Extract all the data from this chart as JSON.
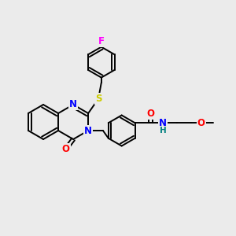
{
  "background_color": "#ebebeb",
  "bond_color": "#000000",
  "bond_width": 1.4,
  "atom_colors": {
    "N": "#0000ff",
    "O": "#ff0000",
    "S": "#cccc00",
    "F": "#ff00ff",
    "H": "#008080",
    "C": "#000000"
  },
  "font_size": 8.5,
  "fig_width": 3.0,
  "fig_height": 3.0,
  "dpi": 100,
  "xlim": [
    0,
    12
  ],
  "ylim": [
    0,
    12
  ]
}
